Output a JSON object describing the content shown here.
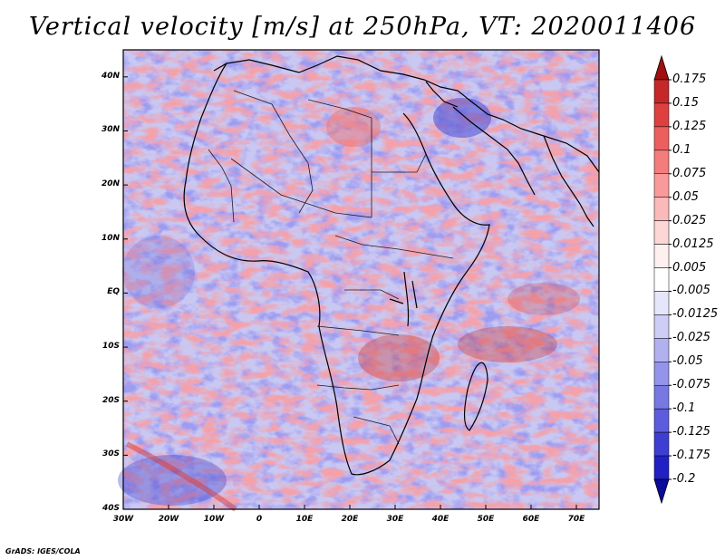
{
  "title": "Vertical velocity [m/s] at 250hPa, VT: 2020011406",
  "credit": "GrADS: IGES/COLA",
  "map": {
    "latitude_labels": [
      "40N",
      "30N",
      "20N",
      "10N",
      "EQ",
      "10S",
      "20S",
      "30S",
      "40S"
    ],
    "longitude_labels": [
      "30W",
      "20W",
      "10W",
      "0",
      "10E",
      "20E",
      "30E",
      "40E",
      "50E",
      "60E",
      "70E"
    ],
    "extent": {
      "lon_min": -30,
      "lon_max": 75,
      "lat_min": -40,
      "lat_max": 45
    },
    "colors": {
      "coast": "#000000",
      "background": "#ffffff"
    }
  },
  "colorbar": {
    "labels": [
      "0.175",
      "0.15",
      "0.125",
      "0.1",
      "0.075",
      "0.05",
      "0.025",
      "0.0125",
      "0.005",
      "-0.005",
      "-0.0125",
      "-0.025",
      "-0.05",
      "-0.075",
      "-0.1",
      "-0.125",
      "-0.175",
      "-0.2"
    ],
    "colors": [
      "#a01010",
      "#c42828",
      "#de4040",
      "#ec5f5f",
      "#f37c7c",
      "#f89a9a",
      "#fbb9b9",
      "#fdd6d6",
      "#fff0f0",
      "#ffffff",
      "#e6e6fb",
      "#cdcdf6",
      "#b1b1f0",
      "#9494ea",
      "#7878e3",
      "#5c5cdc",
      "#3e3ed2",
      "#2020c4",
      "#0a0a9c"
    ]
  }
}
